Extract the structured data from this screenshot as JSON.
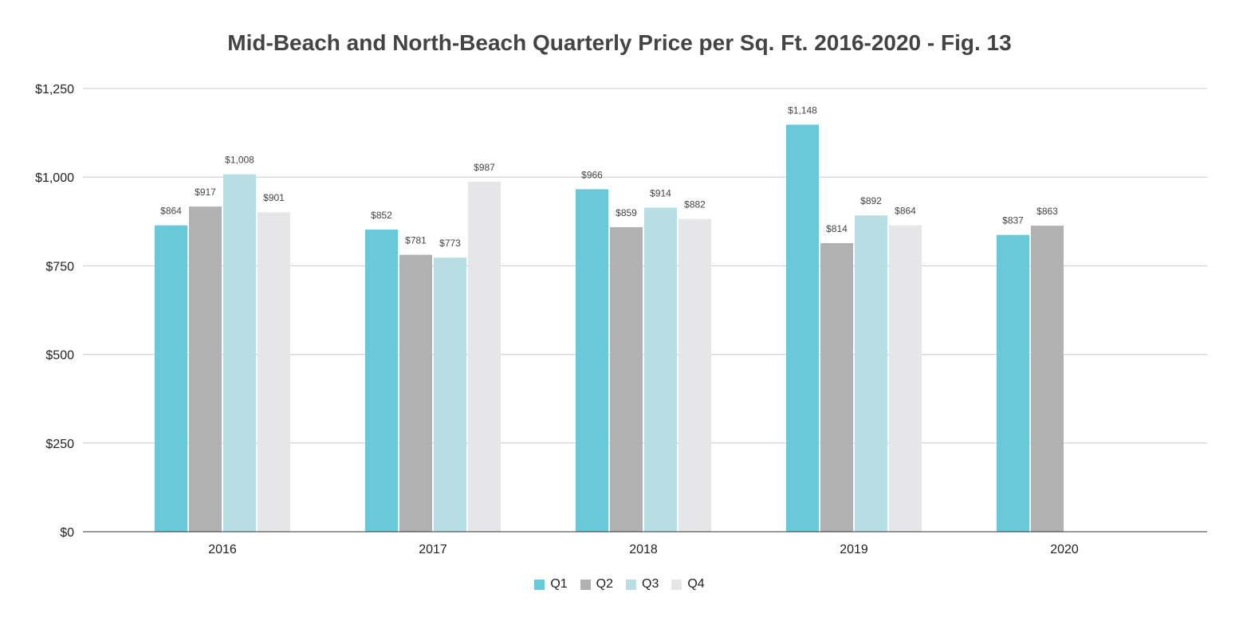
{
  "chart_data": {
    "type": "bar",
    "title": "Mid-Beach and North-Beach Quarterly Price per Sq. Ft. 2016-2020 - Fig. 13",
    "xlabel": "",
    "ylabel": "",
    "categories": [
      "2016",
      "2017",
      "2018",
      "2019",
      "2020"
    ],
    "ylim": [
      0,
      1250
    ],
    "yticks": [
      0,
      250,
      500,
      750,
      1000,
      1250
    ],
    "ytick_labels": [
      "$0",
      "$250",
      "$500",
      "$750",
      "$1,000",
      "$1,250"
    ],
    "grid": true,
    "legend_position": "bottom",
    "series": [
      {
        "name": "Q1",
        "color": "#6ac9d9",
        "values": [
          864,
          852,
          966,
          1148,
          837
        ],
        "labels": [
          "$864",
          "$852",
          "$966",
          "$1,148",
          "$837"
        ]
      },
      {
        "name": "Q2",
        "color": "#b0b1b0",
        "values": [
          917,
          781,
          859,
          814,
          863
        ],
        "labels": [
          "$917",
          "$781",
          "$859",
          "$814",
          "$863"
        ]
      },
      {
        "name": "Q3",
        "color": "#b7dfe3",
        "values": [
          1008,
          773,
          914,
          892,
          null
        ],
        "labels": [
          "$1,008",
          "$773",
          "$914",
          "$892",
          null
        ]
      },
      {
        "name": "Q4",
        "color": "#e6e6e8",
        "values": [
          901,
          987,
          882,
          864,
          null
        ],
        "labels": [
          "$901",
          "$987",
          "$882",
          "$864",
          null
        ]
      }
    ]
  }
}
